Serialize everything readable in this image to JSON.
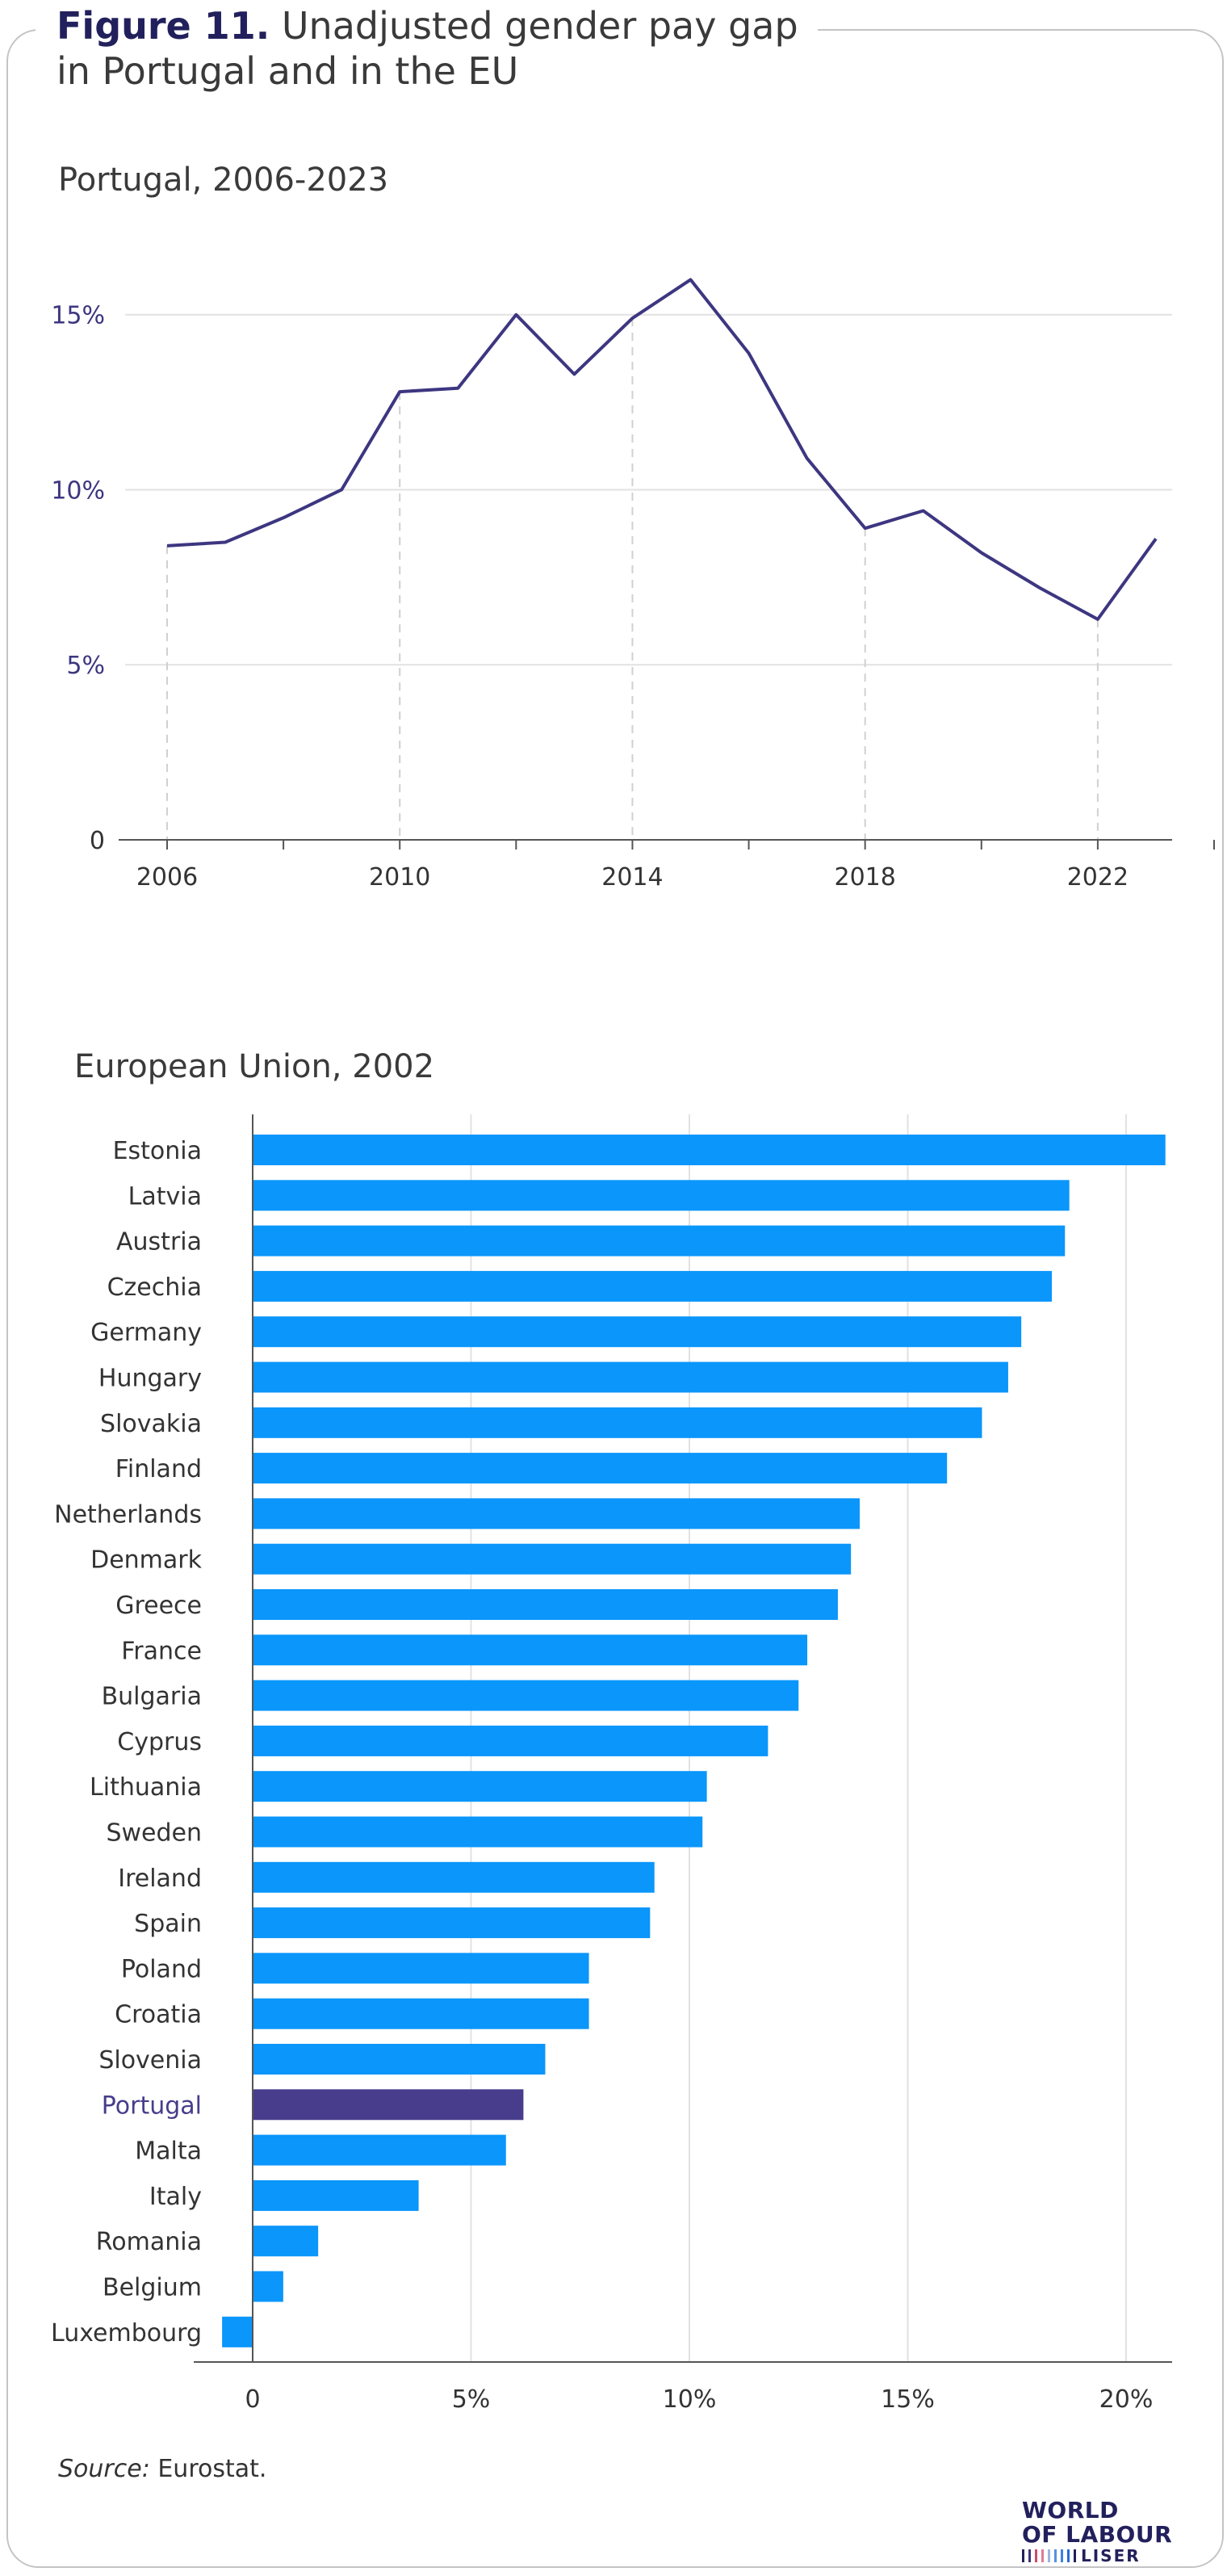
{
  "figure": {
    "number": "Figure 11.",
    "title_line1": "Unadjusted gender pay gap",
    "title_line2": "in Portugal and in the EU"
  },
  "source": {
    "label": "Source:",
    "text": " Eurostat."
  },
  "logo": {
    "line1": "WORLD",
    "line2": "OF LABOUR",
    "line3": "LISER"
  },
  "colors": {
    "line": "#3d3680",
    "bar": "#0a96fb",
    "highlight": "#473d8c",
    "highlight_label": "#473d8c"
  },
  "chart_data": [
    {
      "type": "line",
      "title": "Portugal, 2006-2023",
      "x": [
        2006,
        2007,
        2008,
        2009,
        2010,
        2011,
        2012,
        2013,
        2014,
        2015,
        2016,
        2017,
        2018,
        2019,
        2020,
        2021,
        2022,
        2023
      ],
      "series": [
        {
          "values": [
            8.4,
            8.5,
            9.2,
            10.0,
            12.8,
            12.9,
            15.0,
            13.3,
            14.9,
            16.0,
            13.9,
            10.9,
            8.9,
            9.4,
            8.2,
            7.2,
            6.3,
            8.6
          ]
        }
      ],
      "ytick_values": [
        0,
        5,
        10,
        15
      ],
      "ytick_labels": [
        "0",
        "5%",
        "10%",
        "15%"
      ],
      "xtick_labels": [
        "2006",
        "2010",
        "2014",
        "2018",
        "2022"
      ],
      "ylim": [
        0,
        17
      ],
      "xlim": [
        2006,
        2024
      ],
      "grid": "horizontal"
    },
    {
      "type": "bar",
      "orientation": "horizontal",
      "title": "European Union, 2002",
      "categories": [
        "Estonia",
        "Latvia",
        "Austria",
        "Czechia",
        "Germany",
        "Hungary",
        "Slovakia",
        "Finland",
        "Netherlands",
        "Denmark",
        "Greece",
        "France",
        "Bulgaria",
        "Cyprus",
        "Lithuania",
        "Sweden",
        "Ireland",
        "Spain",
        "Poland",
        "Croatia",
        "Slovenia",
        "Portugal",
        "Malta",
        "Italy",
        "Romania",
        "Belgium",
        "Luxembourg"
      ],
      "values": [
        20.9,
        18.7,
        18.6,
        18.3,
        17.6,
        17.3,
        16.7,
        15.9,
        13.9,
        13.7,
        13.4,
        12.7,
        12.5,
        11.8,
        10.4,
        10.3,
        9.2,
        9.1,
        7.7,
        7.7,
        6.7,
        6.2,
        5.8,
        3.8,
        1.5,
        0.7,
        -0.7
      ],
      "highlight": "Portugal",
      "xtick_values": [
        0,
        5,
        10,
        15,
        20
      ],
      "xtick_labels": [
        "0",
        "5%",
        "10%",
        "15%",
        "20%"
      ],
      "xlim": [
        -1,
        21
      ],
      "grid": "vertical"
    }
  ]
}
